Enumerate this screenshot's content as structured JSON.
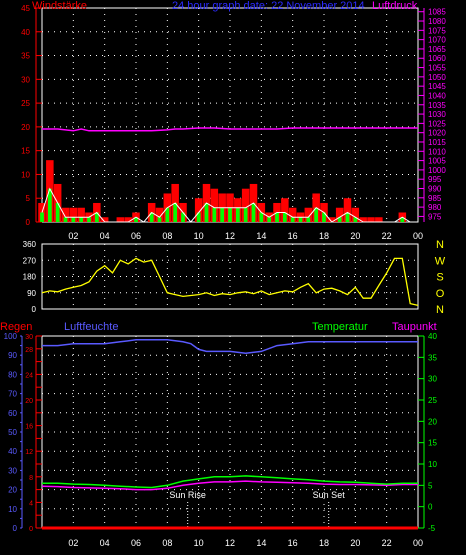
{
  "header": {
    "title_left": "Windstärke",
    "title_center": "24 hour graph date: 22 November 2014",
    "title_right": "Luftdruck"
  },
  "labels": {
    "regen": "Regen",
    "luftfeuchte": "Luftfeuchte",
    "temperatur": "Temperatur",
    "taupunkt": "Taupunkt",
    "sunrise": "Sun Rise",
    "sunset": "Sun Set"
  },
  "colors": {
    "wind_gust": "#ff0000",
    "wind_avg": "#ffffff",
    "wind_green": "#00ff00",
    "pressure": "#ff00ff",
    "direction": "#ffff00",
    "humidity": "#5a5aff",
    "temperature": "#00ff00",
    "dewpoint": "#ff00ff",
    "rain": "#ff0000",
    "left_axis": "#ff0000",
    "right_axis_pressure": "#ff00ff",
    "right_axis_temp": "#00ff00",
    "hum_axis": "#5a5aff",
    "grid": "#ffffff"
  },
  "chart_data": [
    {
      "type": "bar",
      "id": "wind",
      "title": "Windstärke",
      "ylim": [
        0,
        45
      ],
      "yticks": [
        0,
        5,
        10,
        15,
        20,
        25,
        30,
        35,
        40,
        45
      ],
      "xticks": [
        "02",
        "04",
        "06",
        "08",
        "10",
        "12",
        "14",
        "16",
        "18",
        "20",
        "22",
        "00"
      ],
      "series": [
        {
          "name": "gust",
          "x": [
            0,
            0.5,
            1,
            1.5,
            2,
            2.5,
            3,
            3.5,
            4,
            4.5,
            5,
            5.5,
            6,
            6.5,
            7,
            7.5,
            8,
            8.5,
            9,
            9.5,
            10,
            10.5,
            11,
            11.5,
            12,
            12.5,
            13,
            13.5,
            14,
            14.5,
            15,
            15.5,
            16,
            16.5,
            17,
            17.5,
            18,
            18.5,
            19,
            19.5,
            20,
            20.5,
            21,
            21.5,
            22,
            22.5,
            23,
            23.5,
            24
          ],
          "values": [
            4,
            13,
            8,
            3,
            3,
            3,
            2,
            4,
            1,
            0,
            1,
            1,
            2,
            0,
            4,
            3,
            6,
            8,
            4,
            0,
            5,
            8,
            7,
            6,
            6,
            5,
            7,
            8,
            4,
            2,
            4,
            5,
            3,
            2,
            3,
            6,
            4,
            1,
            3,
            5,
            3,
            1,
            1,
            1,
            0,
            0,
            2,
            0,
            0
          ]
        },
        {
          "name": "avg",
          "x": [
            0,
            0.5,
            1,
            1.5,
            2,
            2.5,
            3,
            3.5,
            4,
            4.5,
            5,
            5.5,
            6,
            6.5,
            7,
            7.5,
            8,
            8.5,
            9,
            9.5,
            10,
            10.5,
            11,
            11.5,
            12,
            12.5,
            13,
            13.5,
            14,
            14.5,
            15,
            15.5,
            16,
            16.5,
            17,
            17.5,
            18,
            18.5,
            19,
            19.5,
            20,
            20.5,
            21,
            21.5,
            22,
            22.5,
            23,
            23.5,
            24
          ],
          "values": [
            2,
            7,
            4,
            1,
            1,
            1,
            1,
            2,
            0,
            0,
            0,
            0,
            1,
            0,
            2,
            1,
            3,
            4,
            2,
            0,
            2,
            4,
            3,
            3,
            3,
            3,
            3,
            4,
            2,
            1,
            2,
            2,
            1,
            1,
            1,
            3,
            2,
            0,
            1,
            2,
            1,
            0,
            0,
            0,
            0,
            0,
            1,
            0,
            0
          ]
        }
      ]
    },
    {
      "type": "line",
      "id": "pressure",
      "title": "Luftdruck",
      "ylim": [
        972,
        1087
      ],
      "yticks": [
        975,
        980,
        985,
        990,
        995,
        1000,
        1005,
        1010,
        1015,
        1020,
        1025,
        1030,
        1035,
        1040,
        1045,
        1050,
        1055,
        1060,
        1065,
        1070,
        1075,
        1080,
        1085
      ],
      "series": [
        {
          "name": "Luftdruck",
          "x": [
            0,
            1,
            2,
            2.5,
            3,
            3.5,
            4,
            6,
            7,
            8,
            8.5,
            9,
            10,
            11,
            12,
            13,
            14,
            15,
            16,
            18,
            20,
            22,
            24
          ],
          "values": [
            1022,
            1022,
            1021,
            1022,
            1021,
            1021,
            1021,
            1021,
            1021,
            1021.5,
            1022,
            1022,
            1022.5,
            1022.5,
            1022,
            1022,
            1022,
            1022,
            1022.5,
            1022.5,
            1022.5,
            1022.5,
            1022.5
          ]
        }
      ]
    },
    {
      "type": "line",
      "id": "direction",
      "ylim": [
        0,
        360
      ],
      "yticks": [
        0,
        90,
        180,
        270,
        360
      ],
      "compass": [
        "N",
        "W",
        "S",
        "O",
        "N"
      ],
      "series": [
        {
          "name": "direction",
          "x": [
            0,
            0.5,
            1,
            1.5,
            2,
            2.5,
            3,
            3.5,
            4,
            4.5,
            5,
            5.5,
            6,
            6.5,
            7,
            7.5,
            8,
            8.5,
            9,
            9.5,
            10,
            10.5,
            11,
            11.5,
            12,
            12.5,
            13,
            13.5,
            14,
            14.5,
            15,
            15.5,
            16,
            16.5,
            17,
            17.5,
            18,
            18.5,
            19,
            19.5,
            20,
            20.5,
            21,
            21.5,
            22,
            22.5,
            23,
            23.5,
            24
          ],
          "values": [
            90,
            100,
            95,
            110,
            120,
            130,
            150,
            210,
            240,
            200,
            270,
            250,
            280,
            260,
            270,
            180,
            90,
            80,
            70,
            75,
            80,
            90,
            75,
            85,
            80,
            90,
            95,
            85,
            100,
            80,
            90,
            100,
            95,
            120,
            140,
            90,
            110,
            115,
            100,
            80,
            120,
            60,
            60,
            130,
            200,
            280,
            280,
            30,
            20
          ]
        }
      ]
    },
    {
      "type": "line",
      "id": "climate",
      "ylim_humidity": [
        0,
        100
      ],
      "yticks_humidity": [
        0,
        5,
        10,
        15,
        20,
        25,
        30,
        35,
        40,
        45,
        50,
        55,
        60,
        65,
        70,
        75,
        80,
        85,
        90,
        95,
        100
      ],
      "ylim_rain": [
        0,
        30
      ],
      "yticks_rain": [
        0,
        2,
        4,
        6,
        8,
        10,
        12,
        14,
        16,
        18,
        20,
        22,
        24,
        26,
        28,
        30
      ],
      "ylim_temp": [
        -5,
        40
      ],
      "yticks_temp": [
        -5,
        0,
        5,
        10,
        15,
        20,
        25,
        30,
        35,
        40
      ],
      "sunrise_hour": 9.3,
      "sunset_hour": 18.3,
      "series": [
        {
          "name": "Luftfeuchte",
          "x": [
            0,
            1,
            2,
            3,
            4,
            5,
            6,
            7,
            8,
            9,
            9.5,
            10,
            10.5,
            11,
            12,
            13,
            14,
            15,
            16,
            17,
            18,
            19,
            20,
            21,
            22,
            23,
            24
          ],
          "values": [
            95,
            95,
            96,
            96,
            96,
            97,
            98,
            98,
            98,
            97,
            96,
            93,
            92,
            92,
            92,
            91,
            92,
            95,
            96,
            97,
            97,
            97,
            97,
            97,
            97,
            97,
            97
          ]
        },
        {
          "name": "Temperatur",
          "x": [
            0,
            1,
            2,
            3,
            4,
            5,
            6,
            7,
            8,
            9,
            10,
            11,
            12,
            13,
            14,
            15,
            16,
            17,
            18,
            19,
            20,
            21,
            22,
            23,
            24
          ],
          "values": [
            5.5,
            5.5,
            5.3,
            5.2,
            5.0,
            4.8,
            4.6,
            4.5,
            5.0,
            6.0,
            6.5,
            7.0,
            7.0,
            7.2,
            7.0,
            6.8,
            6.5,
            6.3,
            6.0,
            5.8,
            5.7,
            5.5,
            5.3,
            5.5,
            5.5
          ]
        },
        {
          "name": "Taupunkt",
          "x": [
            0,
            1,
            2,
            3,
            4,
            5,
            6,
            7,
            8,
            9,
            10,
            11,
            12,
            13,
            14,
            15,
            16,
            17,
            18,
            19,
            20,
            21,
            22,
            23,
            24
          ],
          "values": [
            4.8,
            4.7,
            4.5,
            4.4,
            4.3,
            4.2,
            4.0,
            4.0,
            4.3,
            5.0,
            5.5,
            5.8,
            5.8,
            6.0,
            5.8,
            5.7,
            5.6,
            5.5,
            5.3,
            5.2,
            5.2,
            5.1,
            5.0,
            5.2,
            5.2
          ]
        },
        {
          "name": "Regen",
          "x": [
            0,
            24
          ],
          "values": [
            0,
            0
          ]
        }
      ]
    }
  ]
}
